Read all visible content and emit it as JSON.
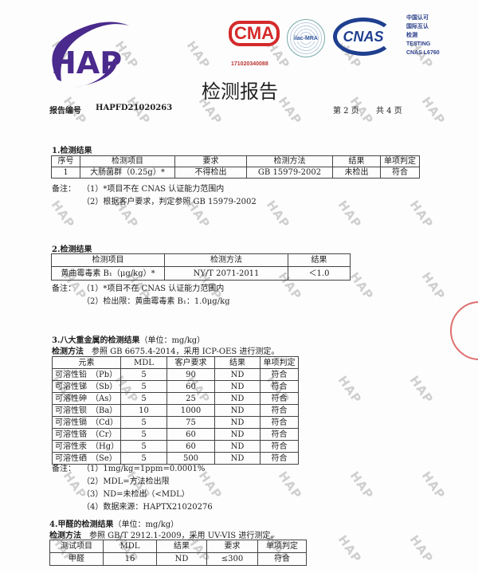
{
  "header": {
    "logo_text": "HAP",
    "cma_logo": "CMA",
    "cma_number": "171020340088",
    "ilac_logo": "ilac-MRA",
    "cnas_logo": "CNAS",
    "cnas_lines": [
      "中国认可",
      "国际互认",
      "检测",
      "TESTING",
      "CNAS L6760"
    ],
    "title": "检测报告",
    "report_no_label": "报告编号",
    "report_no": "HAPFD21020263",
    "page_text": "第 2 页",
    "total_text": "共 4 页"
  },
  "colors": {
    "logo_purple": "#4a2a8c",
    "cma_red": "#d42a2a",
    "cnas_blue": "#1f3f8f"
  },
  "section1": {
    "title": "1.检测结果",
    "headers": [
      "序号",
      "检测项目",
      "要求",
      "检测方法",
      "结果",
      "单项判定"
    ],
    "rows": [
      [
        "1",
        "大肠菌群（0.25g）*",
        "不得检出",
        "GB 15979-2002",
        "未检出",
        "符合"
      ]
    ],
    "note_label": "备注：",
    "notes": [
      "（1）*项目不在 CNAS 认证能力范围内",
      "（2）根据客户要求，判定参照 GB 15979-2002"
    ]
  },
  "section2": {
    "title": "2.检测结果",
    "headers": [
      "检测项目",
      "检测方法",
      "结果"
    ],
    "rows": [
      [
        "黄曲霉毒素 B₁（μg/kg）*",
        "NY/T 2071-2011",
        "＜1.0"
      ]
    ],
    "note_label": "备注：",
    "notes": [
      "（1）*项目不在 CNAS 认证能力范围内",
      "（2）检出限：黄曲霉毒素 B₁：1.0μg/kg"
    ]
  },
  "section3": {
    "title": "3.八大重金属的检测结果",
    "unit": "（单位：mg/kg）",
    "method_label": "检测方法",
    "method": "参照 GB 6675.4-2014，采用 ICP-OES 进行测定。",
    "headers": [
      "元素",
      "MDL",
      "客户要求",
      "结果",
      "单项判定"
    ],
    "rows": [
      [
        "可溶性铅　（Pb）",
        "5",
        "90",
        "ND",
        "符合"
      ],
      [
        "可溶性锑　（Sb）",
        "5",
        "60",
        "ND",
        "符合"
      ],
      [
        "可溶性砷　（As）",
        "5",
        "25",
        "ND",
        "符合"
      ],
      [
        "可溶性钡　（Ba）",
        "10",
        "1000",
        "ND",
        "符合"
      ],
      [
        "可溶性镉　（Cd）",
        "5",
        "75",
        "ND",
        "符合"
      ],
      [
        "可溶性铬　（Cr）",
        "5",
        "60",
        "ND",
        "符合"
      ],
      [
        "可溶性汞　（Hg）",
        "5",
        "60",
        "ND",
        "符合"
      ],
      [
        "可溶性硒　（Se）",
        "5",
        "500",
        "ND",
        "符合"
      ]
    ],
    "note_label": "备注：",
    "notes": [
      "（1）1mg/kg=1ppm=0.0001%",
      "（2）MDL=方法检出限",
      "（3）ND=未检出（<MDL）",
      "（4）数据来源：HAPTX21020276"
    ]
  },
  "section4": {
    "title": "4.甲醛的检测结果",
    "unit": "（单位：mg/kg）",
    "method_label": "检测方法",
    "method": "参照 GB/T 2912.1-2009，采用 UV-VIS 进行测定。",
    "headers": [
      "测试项目",
      "MDL",
      "结果",
      "要求",
      "单项判定"
    ],
    "rows": [
      [
        "甲醛",
        "16",
        "ND",
        "≤300",
        "符合"
      ]
    ]
  },
  "watermark": "HAP"
}
